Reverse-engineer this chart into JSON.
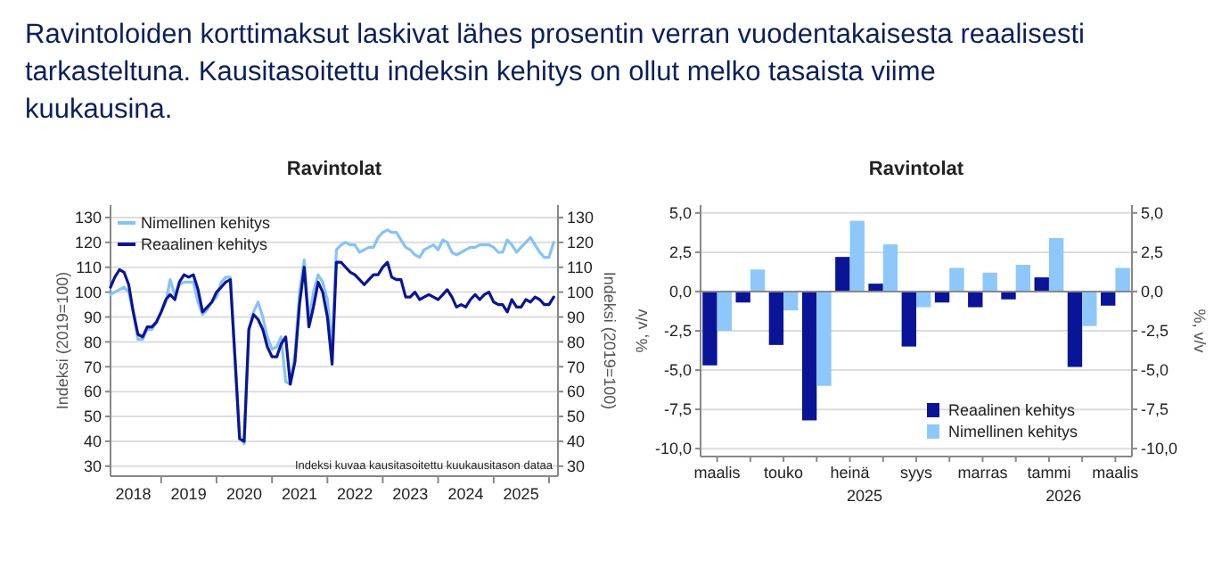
{
  "chart_data": [
    {
      "type": "line",
      "title": "Ravintoloiden korttimaksut laskivat lähes prosentin verran vuodentakaisesta reaalisesti tarkasteltuna. Kausitasoitettu indeksin kehitys on ollut melko tasaista viime kuukausina.",
      "subtitle": "Ravintolat",
      "ylabel": "Indeksi (2019=100)",
      "y2label": "Indeksi (2019=100)",
      "annotations": [
        "Indeksi kuvaa kausitasoitettu kuukausitason dataa"
      ],
      "x": [
        "2018-02",
        "2018-03",
        "2018-04",
        "2018-05",
        "2018-06",
        "2018-07",
        "2018-08",
        "2018-09",
        "2018-10",
        "2018-11",
        "2018-12",
        "2019-01",
        "2019-02",
        "2019-03",
        "2019-04",
        "2019-05",
        "2019-06",
        "2019-07",
        "2019-08",
        "2019-09",
        "2019-10",
        "2019-11",
        "2019-12",
        "2020-01",
        "2020-02",
        "2020-03",
        "2020-04",
        "2020-05",
        "2020-06",
        "2020-07",
        "2020-08",
        "2020-09",
        "2020-10",
        "2020-11",
        "2020-12",
        "2021-01",
        "2021-02",
        "2021-03",
        "2021-04",
        "2021-05",
        "2021-06",
        "2021-07",
        "2021-08",
        "2021-09",
        "2021-10",
        "2021-11",
        "2021-12",
        "2022-01",
        "2022-02",
        "2022-03",
        "2022-04",
        "2022-05",
        "2022-06",
        "2022-07",
        "2022-08",
        "2022-09",
        "2022-10",
        "2022-11",
        "2022-12",
        "2023-01",
        "2023-02",
        "2023-03",
        "2023-04",
        "2023-05",
        "2023-06",
        "2023-07",
        "2023-08",
        "2023-09",
        "2023-10",
        "2023-11",
        "2023-12",
        "2024-01",
        "2024-02",
        "2024-03",
        "2024-04",
        "2024-05",
        "2024-06",
        "2024-07",
        "2024-08",
        "2024-09",
        "2024-10",
        "2024-11",
        "2024-12",
        "2025-01",
        "2025-02",
        "2025-03",
        "2025-04",
        "2025-05",
        "2025-06",
        "2025-07",
        "2025-08",
        "2025-09",
        "2025-10",
        "2025-11",
        "2025-12",
        "2026-01",
        "2026-02"
      ],
      "series": [
        {
          "name": "Nimellinen kehitys",
          "color": "#86c2f7",
          "values": [
            99,
            100,
            101,
            102,
            100,
            92,
            81,
            81,
            85,
            85,
            88,
            92,
            96,
            105,
            99,
            103,
            104,
            104,
            104,
            96,
            91,
            93,
            96,
            98,
            104,
            106,
            106,
            75,
            42,
            39,
            85,
            92,
            96,
            90,
            82,
            77,
            78,
            82,
            64,
            63,
            75,
            100,
            113,
            88,
            100,
            107,
            104,
            97,
            78,
            117,
            119,
            120,
            119,
            119,
            116,
            117,
            118,
            118,
            122,
            124,
            125,
            124,
            124,
            121,
            118,
            117,
            115,
            114,
            117,
            118,
            119,
            117,
            121,
            120,
            116,
            115,
            116,
            117,
            118,
            118,
            119,
            119,
            119,
            118,
            116,
            116,
            121,
            119,
            116,
            118,
            120,
            122,
            119,
            116,
            114,
            114,
            120
          ]
        },
        {
          "name": "Reaalinen kehitys",
          "color": "#0a1496",
          "values": [
            102,
            106,
            109,
            108,
            103,
            92,
            83,
            82,
            86,
            86,
            88,
            92,
            97,
            99,
            97,
            104,
            107,
            106,
            107,
            101,
            92,
            94,
            96,
            100,
            102,
            104,
            105,
            74,
            41,
            40,
            85,
            91,
            89,
            85,
            78,
            74,
            74,
            79,
            82,
            63,
            72,
            95,
            110,
            86,
            94,
            104,
            100,
            90,
            71,
            112,
            112,
            110,
            108,
            107,
            105,
            103,
            105,
            107,
            107,
            110,
            112,
            106,
            105,
            105,
            98,
            98,
            100,
            97,
            98,
            99,
            98,
            97,
            99,
            101,
            98,
            94,
            95,
            94,
            97,
            99,
            97,
            99,
            100,
            96,
            95,
            95,
            92,
            97,
            94,
            94,
            97,
            96,
            98,
            97,
            95,
            95,
            98
          ]
        }
      ],
      "xlim": [
        "2018-02",
        "2026-03"
      ],
      "xticks": [
        {
          "value": "2018-07-01",
          "label": "2018"
        },
        {
          "value": "2019-01-01",
          "label": null
        },
        {
          "value": "2019-07-01",
          "label": "2019"
        },
        {
          "value": "2020-01-01",
          "label": null
        },
        {
          "value": "2020-07-01",
          "label": "2020"
        },
        {
          "value": "2021-01-01",
          "label": null
        },
        {
          "value": "2021-07-01",
          "label": "2021"
        },
        {
          "value": "2022-01-01",
          "label": null
        },
        {
          "value": "2022-07-01",
          "label": "2022"
        },
        {
          "value": "2023-01-01",
          "label": null
        },
        {
          "value": "2023-07-01",
          "label": "2023"
        },
        {
          "value": "2024-01-01",
          "label": null
        },
        {
          "value": "2024-07-01",
          "label": "2024"
        },
        {
          "value": "2025-01-01",
          "label": null
        },
        {
          "value": "2025-07-01",
          "label": "2025"
        },
        {
          "value": "2026-01-01",
          "label": null
        }
      ],
      "ylim": [
        26,
        135
      ],
      "yticks": [
        30,
        40,
        50,
        60,
        70,
        80,
        90,
        100,
        110,
        120,
        130
      ],
      "y2lim": [
        26,
        135
      ],
      "y2ticks": [
        30,
        40,
        50,
        60,
        70,
        80,
        90,
        100,
        110,
        120,
        130
      ],
      "grid": "y",
      "legend": "top left",
      "line_style": "solid",
      "marker": "none"
    },
    {
      "type": "bar",
      "title": "Ravintolat",
      "ylabel": "%, v/v",
      "y2label": "%, v/v",
      "annotations": [
        "2025",
        "2026"
      ],
      "categories": [
        "maalis",
        null,
        "touko",
        null,
        "heinä",
        null,
        "syys",
        null,
        "marras",
        null,
        "tammi",
        null,
        "maalis"
      ],
      "series": [
        {
          "name": "Reaalinen kehitys",
          "color": "#0a1496",
          "values": [
            -4.7,
            -0.7,
            -3.4,
            -8.2,
            2.2,
            0.5,
            -3.5,
            -0.7,
            -1.0,
            -0.5,
            0.9,
            -4.8,
            -0.9
          ]
        },
        {
          "name": "Nimellinen kehitys",
          "color": "#8ec8fa",
          "values": [
            -2.5,
            1.4,
            -1.2,
            -6.0,
            4.5,
            3.0,
            -1.0,
            1.5,
            1.2,
            1.7,
            3.4,
            -2.2,
            1.5
          ]
        }
      ],
      "ylim": [
        -10.5,
        5.5
      ],
      "yticks": [
        {
          "value": 5,
          "label": "5,0"
        },
        {
          "value": 2.5,
          "label": "2,5"
        },
        {
          "value": 0,
          "label": "0,0"
        },
        {
          "value": -2.5,
          "label": "-2,5"
        },
        {
          "value": -5,
          "label": "-5,0"
        },
        {
          "value": -7.5,
          "label": "-7,5"
        },
        {
          "value": -10,
          "label": "-10,0"
        }
      ],
      "y2lim": [
        -10.5,
        5.5
      ],
      "y2ticks": [
        {
          "value": 5,
          "label": "5,0"
        },
        {
          "value": 2.5,
          "label": "2,5"
        },
        {
          "value": 0,
          "label": "0,0"
        },
        {
          "value": -2.5,
          "label": "-2,5"
        },
        {
          "value": -5,
          "label": "-5,0"
        },
        {
          "value": -7.5,
          "label": "-7,5"
        },
        {
          "value": -10,
          "label": "-10,0"
        }
      ],
      "grid": "y",
      "legend": "bottom right"
    }
  ]
}
